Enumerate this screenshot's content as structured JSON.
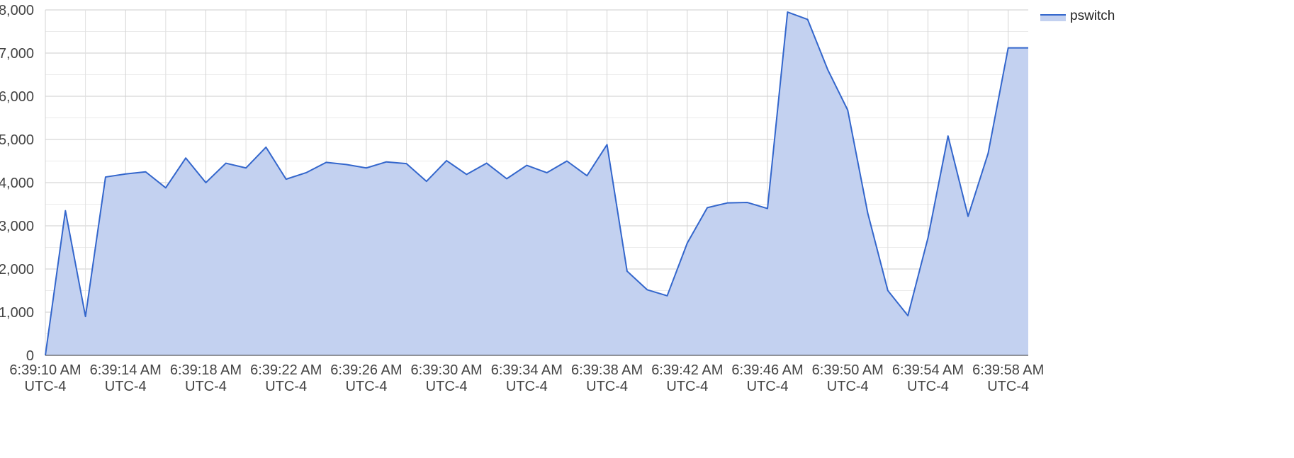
{
  "chart_data": {
    "type": "area",
    "x_unit": "seconds after 6:39:10 AM",
    "series": [
      {
        "name": "pswitch",
        "color": "#3366cc",
        "fill": "#c3d1f0",
        "x": [
          0,
          1,
          2,
          3,
          4,
          5,
          6,
          7,
          8,
          9,
          10,
          11,
          12,
          13,
          14,
          15,
          16,
          17,
          18,
          19,
          20,
          21,
          22,
          23,
          24,
          25,
          26,
          27,
          28,
          29,
          30,
          31,
          32,
          33,
          34,
          35,
          36,
          37,
          38,
          39,
          40,
          41,
          42,
          43,
          44,
          45,
          46,
          47,
          48,
          49
        ],
        "values": [
          0,
          3350,
          900,
          4130,
          4200,
          4250,
          3880,
          4570,
          4000,
          4450,
          4340,
          4820,
          4080,
          4230,
          4470,
          4420,
          4340,
          4480,
          4440,
          4030,
          4510,
          4190,
          4450,
          4090,
          4400,
          4230,
          4500,
          4160,
          4880,
          1950,
          1520,
          1380,
          2600,
          3420,
          3530,
          3540,
          3400,
          7950,
          7780,
          6620,
          5680,
          3290,
          1500,
          920,
          2720,
          5080,
          3220,
          4680,
          7120,
          7120
        ]
      }
    ],
    "x_tick_labels": [
      {
        "line1": "6:39:10 AM",
        "line2": "UTC-4"
      },
      {
        "line1": "6:39:14 AM",
        "line2": "UTC-4"
      },
      {
        "line1": "6:39:18 AM",
        "line2": "UTC-4"
      },
      {
        "line1": "6:39:22 AM",
        "line2": "UTC-4"
      },
      {
        "line1": "6:39:26 AM",
        "line2": "UTC-4"
      },
      {
        "line1": "6:39:30 AM",
        "line2": "UTC-4"
      },
      {
        "line1": "6:39:34 AM",
        "line2": "UTC-4"
      },
      {
        "line1": "6:39:38 AM",
        "line2": "UTC-4"
      },
      {
        "line1": "6:39:42 AM",
        "line2": "UTC-4"
      },
      {
        "line1": "6:39:46 AM",
        "line2": "UTC-4"
      },
      {
        "line1": "6:39:50 AM",
        "line2": "UTC-4"
      },
      {
        "line1": "6:39:54 AM",
        "line2": "UTC-4"
      },
      {
        "line1": "6:39:58 AM",
        "line2": "UTC-4"
      }
    ],
    "x_tick_seconds": [
      0,
      4,
      8,
      12,
      16,
      20,
      24,
      28,
      32,
      36,
      40,
      44,
      48
    ],
    "y_ticks": [
      0,
      1000,
      2000,
      3000,
      4000,
      5000,
      6000,
      7000,
      8000
    ],
    "y_tick_labels": [
      "0",
      "1,000",
      "2,000",
      "3,000",
      "4,000",
      "5,000",
      "6,000",
      "7,000",
      "8,000"
    ],
    "xlim": [
      0,
      49
    ],
    "ylim": [
      0,
      8000
    ],
    "grid": true,
    "legend": {
      "position": "top-right",
      "label": "pswitch"
    },
    "title": "",
    "xlabel": "",
    "ylabel": ""
  }
}
